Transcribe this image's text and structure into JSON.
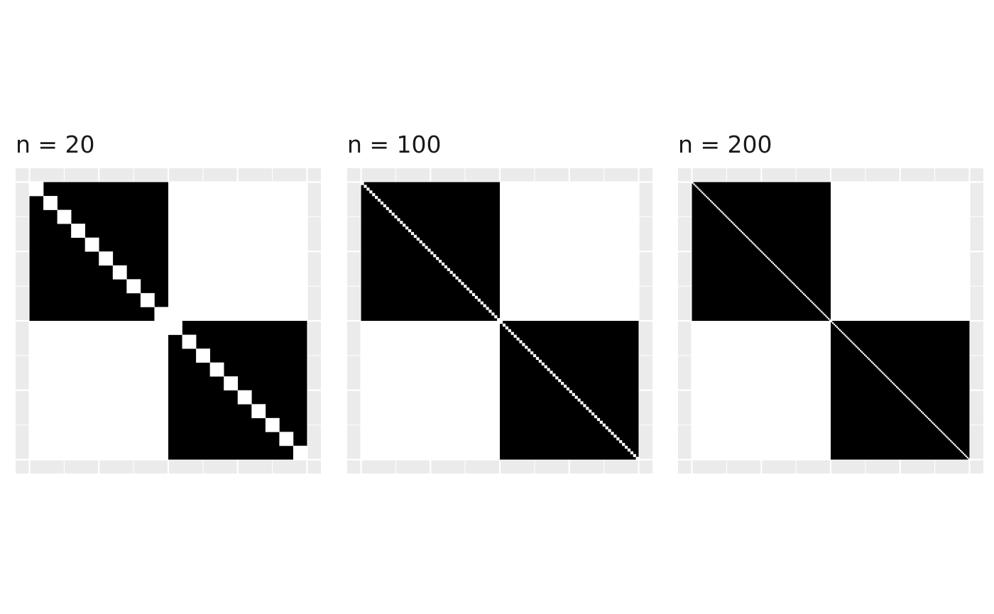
{
  "chart_data": [
    {
      "type": "heatmap",
      "title": "n = 20",
      "n": 20,
      "block_size": 10,
      "fill_colors": {
        "in_block": "#000000",
        "out_block": "#ffffff",
        "diagonal": "#ffffff"
      },
      "panel_background": "#ebebeb",
      "grid": true,
      "axes_labels_shown": false
    },
    {
      "type": "heatmap",
      "title": "n = 100",
      "n": 100,
      "block_size": 50,
      "fill_colors": {
        "in_block": "#000000",
        "out_block": "#ffffff",
        "diagonal": "#ffffff"
      },
      "panel_background": "#ebebeb",
      "grid": true,
      "axes_labels_shown": false
    },
    {
      "type": "heatmap",
      "title": "n = 200",
      "n": 200,
      "block_size": 100,
      "fill_colors": {
        "in_block": "#000000",
        "out_block": "#ffffff",
        "diagonal": "#ffffff"
      },
      "panel_background": "#ebebeb",
      "grid": true,
      "axes_labels_shown": false
    }
  ]
}
